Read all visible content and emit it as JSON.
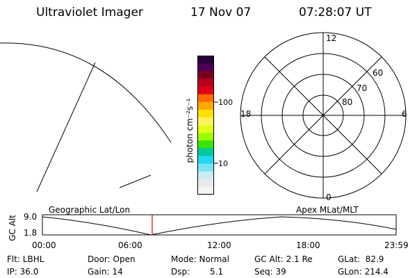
{
  "header": {
    "instrument": "Ultraviolet Imager",
    "date": "17 Nov 07",
    "time": "07:28:07 UT"
  },
  "colorbar": {
    "unit_label": "photon cm⁻²s⁻¹",
    "tick_100": "100",
    "tick_10": "10",
    "colors": [
      "#2a003a",
      "#4a0055",
      "#7a0020",
      "#b8001c",
      "#e00018",
      "#ff6a00",
      "#ffa800",
      "#ffe000",
      "#fff25a",
      "#e2ff1a",
      "#9cff00",
      "#36e400",
      "#00c8a0",
      "#22d8ee",
      "#7ae4f4",
      "#c8ecf2",
      "#e6eaee",
      "#f4f4f6"
    ]
  },
  "polar": {
    "label_top": "12",
    "label_left": "18",
    "label_right": "6",
    "label_bottom": "0",
    "lat_60": "60",
    "lat_70": "70",
    "lat_80": "80"
  },
  "timeline": {
    "left_label": "Geographic Lat/Lon",
    "right_label": "Apex MLat/MLT",
    "axis_title": "GC Alt",
    "y_max": "9.0",
    "y_min": "1.8",
    "ticks": [
      "00:00",
      "06:00",
      "12:00",
      "18:00",
      "23:59"
    ],
    "marker_color": "#dd0000"
  },
  "info": {
    "filter": "Flt: LBHL",
    "ip": "IP: 36.0",
    "door": "Door: Open",
    "gain": "Gain: 14",
    "mode": "Mode: Normal",
    "dsp_label": "Dsp:",
    "dsp_value": "5.1",
    "gc_alt": "GC Alt: 2.1 Re",
    "seq": "Seq: 39",
    "glat": "GLat:  82.9",
    "glon": "GLon: 214.4"
  }
}
